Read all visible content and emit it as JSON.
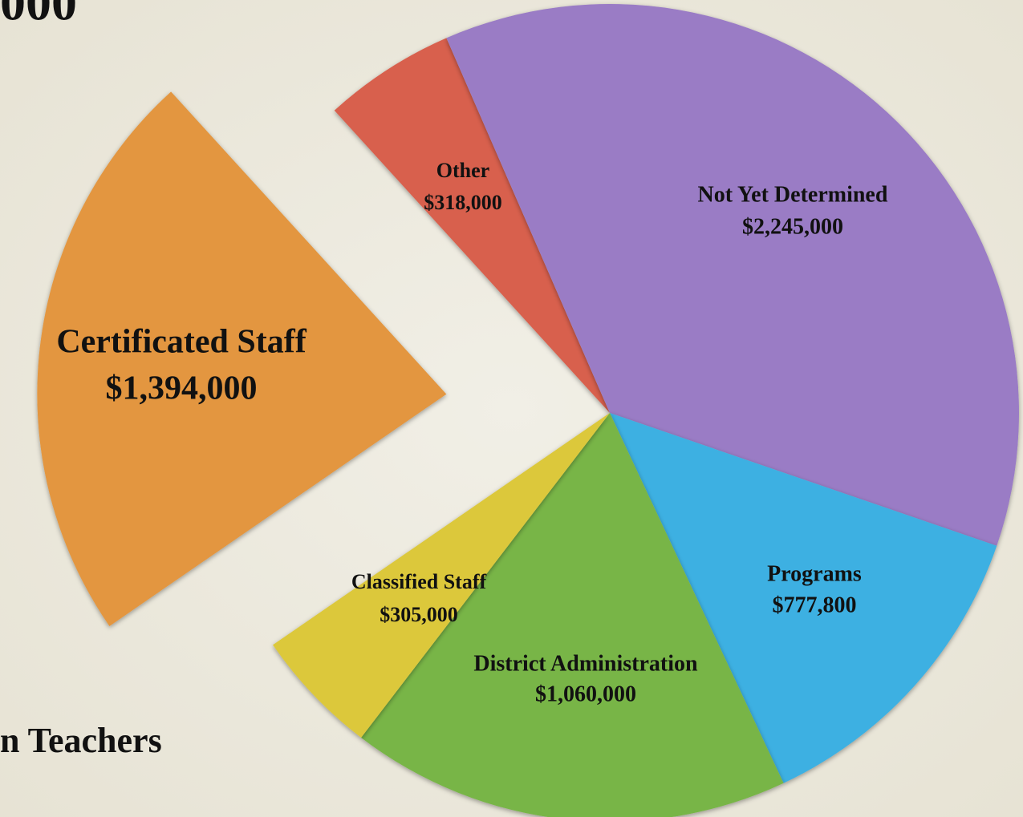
{
  "chart_data": {
    "type": "pie",
    "title": "000",
    "subtitle": "n Teachers",
    "categories": [
      "Other",
      "Not Yet Determined",
      "Programs",
      "District Administration",
      "Classified Staff",
      "Certificated Staff"
    ],
    "values": [
      318000,
      2245000,
      777800,
      1060000,
      305000,
      1394000
    ],
    "value_labels": [
      "$318,000",
      "$2,245,000",
      "$777,800",
      "$1,060,000",
      "$305,000",
      "$1,394,000"
    ],
    "colors": [
      "#d8604e",
      "#9a7bc5",
      "#3db0e2",
      "#78b547",
      "#dcc83a",
      "#e3963f"
    ],
    "exploded": "Certificated Staff"
  }
}
